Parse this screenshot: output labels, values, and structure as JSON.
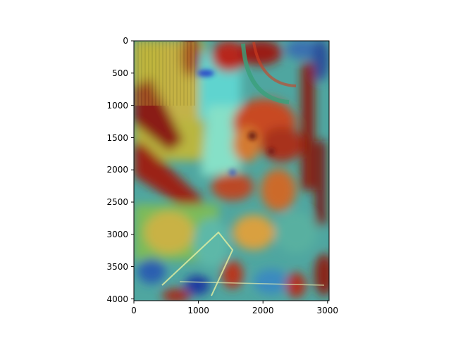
{
  "chart_data": {
    "type": "heatmap",
    "title": "",
    "xlabel": "",
    "ylabel": "",
    "x_ticks": [
      0,
      1000,
      2000,
      3000
    ],
    "y_ticks": [
      0,
      500,
      1000,
      1500,
      2000,
      2500,
      3000,
      3500,
      4000
    ],
    "xlim": [
      0,
      3024
    ],
    "ylim": [
      4032,
      0
    ],
    "colormap": "jet",
    "overlay": "heatmap overlaid on a photograph of a building interior"
  }
}
